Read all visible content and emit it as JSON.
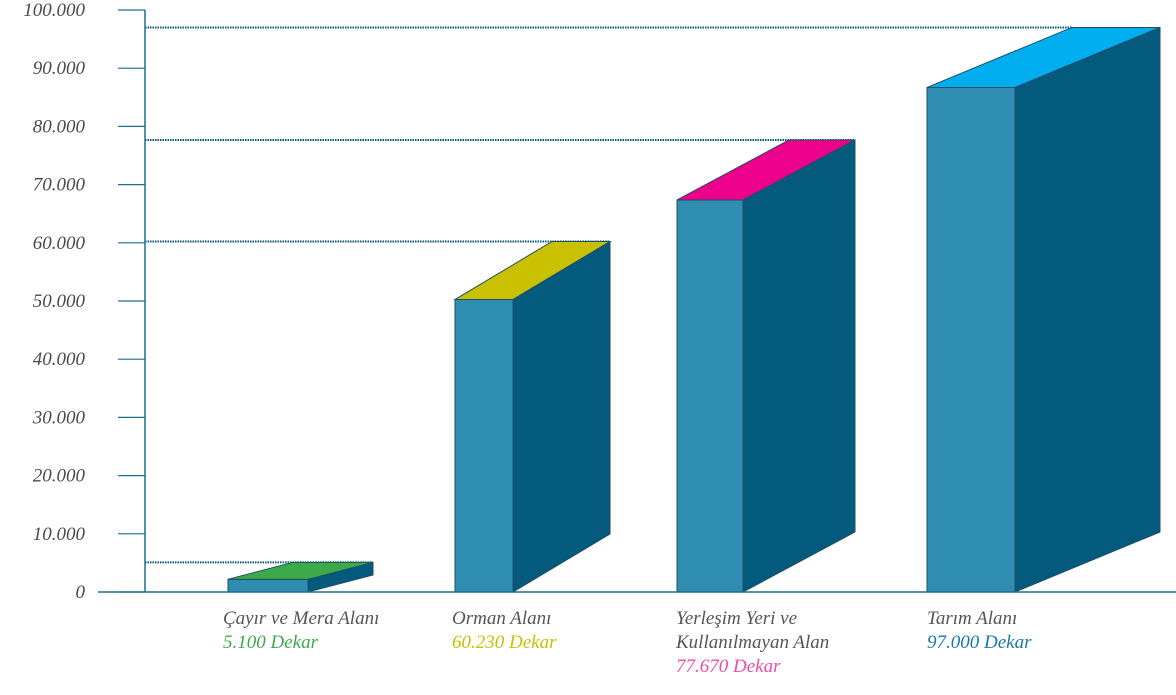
{
  "chart_data": {
    "type": "bar",
    "style": "3d",
    "ylim": [
      0,
      100000
    ],
    "yticks": [
      "0",
      "10.000",
      "20.000",
      "30.000",
      "40.000",
      "50.000",
      "60.000",
      "70.000",
      "80.000",
      "90.000",
      "100.000"
    ],
    "grid": false,
    "categories": [
      {
        "label_lines": [
          "Çayır ve Mera Alanı"
        ],
        "value": 5100,
        "value_label": "5.100 Dekar",
        "color": "#3daa4a"
      },
      {
        "label_lines": [
          "Orman Alanı"
        ],
        "value": 60230,
        "value_label": "60.230 Dekar",
        "color": "#c8c000"
      },
      {
        "label_lines": [
          "Yerleşim Yeri ve",
          "Kullanılmayan Alan"
        ],
        "value": 77670,
        "value_label": "77.670 Dekar",
        "color": "#ec008c"
      },
      {
        "label_lines": [
          "Tarım Alanı"
        ],
        "value": 97000,
        "value_label": "97.000 Dekar",
        "color": "#00aeef"
      }
    ],
    "colors": {
      "front": "#2e8db0",
      "side": "#035a7d",
      "axis": "#1d6f8e",
      "value_label_0": "#3daa4a",
      "value_label_1": "#c8c000",
      "value_label_2": "#ec4ca6",
      "value_label_3": "#1779a8"
    }
  }
}
